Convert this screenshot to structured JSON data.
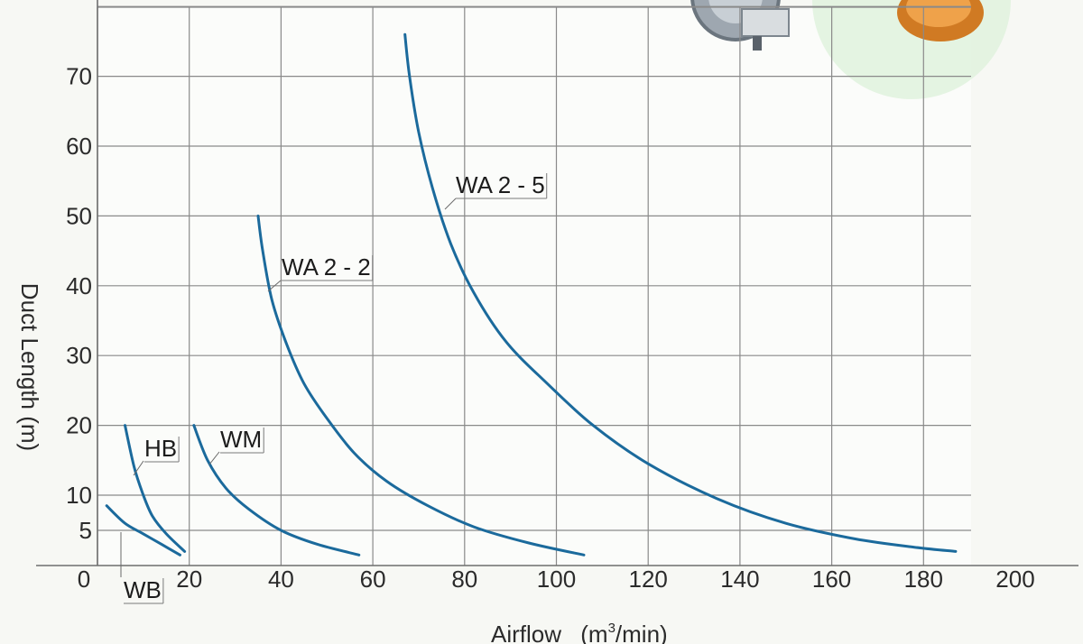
{
  "chart_data": {
    "type": "line",
    "xlabel": "Airflow (m³/min)",
    "xlabel_main": "Airflow",
    "xlabel_unit_prefix": "(m",
    "xlabel_unit_sup": "3",
    "xlabel_unit_suffix": "/min)",
    "ylabel": "Duct Length (m)",
    "xlim": [
      0,
      200
    ],
    "ylim": [
      0,
      75
    ],
    "x_ticks": [
      0,
      20,
      40,
      60,
      80,
      100,
      120,
      140,
      160,
      180,
      200
    ],
    "y_ticks": [
      5,
      10,
      20,
      30,
      40,
      50,
      60,
      70
    ],
    "x_grid": [
      0,
      20,
      40,
      60,
      80,
      100,
      120,
      140,
      160,
      180
    ],
    "y_grid": [
      5,
      10,
      20,
      30,
      40,
      50,
      60,
      70,
      80
    ],
    "grid": true,
    "colors": {
      "line": "#1b6a9c",
      "grid": "#8a8a8a",
      "background": "#f7f8f4",
      "panel": "#fbfcfa"
    },
    "series": [
      {
        "name": "WB",
        "x": [
          2,
          6,
          10,
          14,
          18
        ],
        "y": [
          8.5,
          6,
          4.5,
          3,
          1.5
        ]
      },
      {
        "name": "HB",
        "x": [
          6,
          8,
          10,
          12,
          15,
          19
        ],
        "y": [
          20,
          14,
          10,
          7,
          4.5,
          2
        ]
      },
      {
        "name": "WM",
        "x": [
          21,
          24,
          28,
          33,
          40,
          48,
          57
        ],
        "y": [
          20,
          15,
          11,
          8,
          5,
          3,
          1.5
        ]
      },
      {
        "name": "WA 2-2",
        "x": [
          35,
          36,
          38,
          41,
          45,
          50,
          56,
          63,
          72,
          82,
          94,
          106
        ],
        "y": [
          50,
          45,
          38,
          32,
          26,
          21,
          16,
          12,
          8.5,
          5.5,
          3.2,
          1.5
        ]
      },
      {
        "name": "WA 2-5",
        "x": [
          67,
          68,
          70,
          73,
          77,
          82,
          89,
          98,
          108,
          120,
          135,
          150,
          165,
          178,
          187
        ],
        "y": [
          76,
          70,
          62,
          54,
          46,
          39,
          32,
          26,
          20,
          14.5,
          9.5,
          6,
          3.8,
          2.6,
          2
        ]
      }
    ],
    "labels": [
      {
        "series": "WB",
        "text": "WB"
      },
      {
        "series": "HB",
        "text": "HB"
      },
      {
        "series": "WM",
        "text": "WM"
      },
      {
        "series": "WA 2-2",
        "text": "WA 2 - 2"
      },
      {
        "series": "WA 2-5",
        "text": "WA 2 - 5"
      }
    ]
  }
}
